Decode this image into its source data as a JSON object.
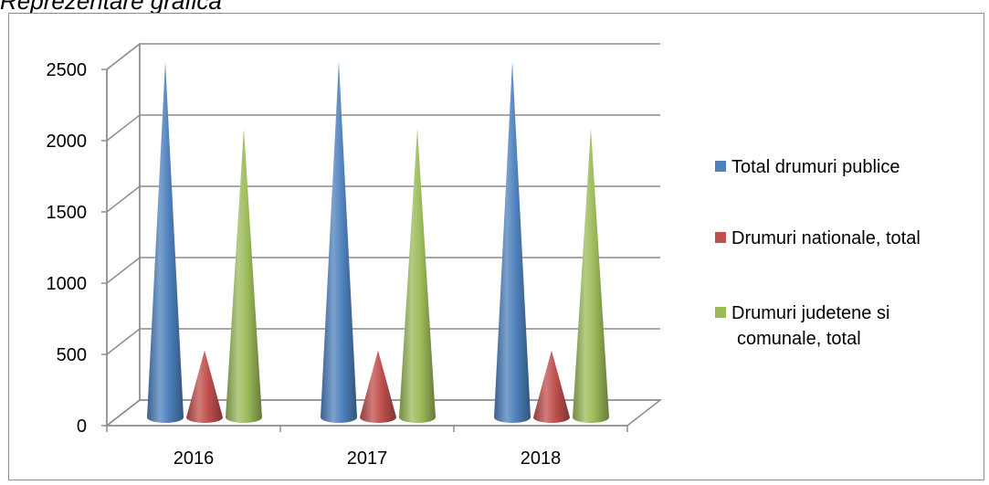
{
  "caption": "Reprezentare grafica",
  "chart_data": {
    "type": "bar",
    "shape": "cone",
    "categories": [
      "2016",
      "2017",
      "2018"
    ],
    "series": [
      {
        "name": "Total drumuri publice",
        "values": [
          2500,
          2500,
          2500
        ],
        "color": "#4f81bd"
      },
      {
        "name": "Drumuri nationale, total",
        "values": [
          470,
          470,
          470
        ],
        "color": "#c0504d"
      },
      {
        "name": "Drumuri judetene si comunale, total",
        "values": [
          2030,
          2030,
          2030
        ],
        "color": "#9bbb59"
      }
    ],
    "yticks": [
      "0",
      "500",
      "1000",
      "1500",
      "2000",
      "2500"
    ],
    "ylim": [
      0,
      2500
    ],
    "grid": true,
    "legend_position": "right"
  }
}
